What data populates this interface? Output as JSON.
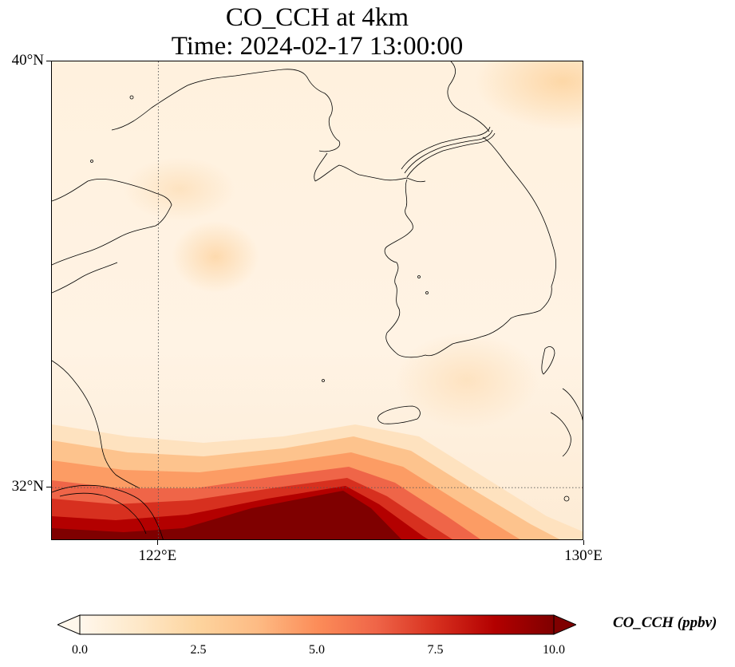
{
  "title": {
    "line1": "CO_CCH at 4km",
    "line2": "Time: 2024-02-17 13:00:00"
  },
  "map": {
    "extent": {
      "lon_min": 120,
      "lon_max": 130,
      "lat_min": 31,
      "lat_max": 40
    },
    "lat_ticks": [
      {
        "value": 40,
        "label": "40°N"
      },
      {
        "value": 32,
        "label": "32°N"
      }
    ],
    "lon_ticks": [
      {
        "value": 122,
        "label": "122°E"
      },
      {
        "value": 130,
        "label": "130°E"
      }
    ],
    "gridlines": {
      "lon": [
        122
      ],
      "lat": [
        32
      ],
      "style": "dotted"
    },
    "colormap": "OrRd",
    "colors": {
      "low": "#fff7ec",
      "mid": "#fc8d59",
      "high": "#7f0000",
      "coast": "#000000"
    }
  },
  "colorbar": {
    "label": "CO_CCH (ppbv)",
    "min": 0.0,
    "max": 10.0,
    "extend": "both",
    "ticks": [
      "0.0",
      "2.5",
      "5.0",
      "7.5",
      "10.0"
    ]
  }
}
